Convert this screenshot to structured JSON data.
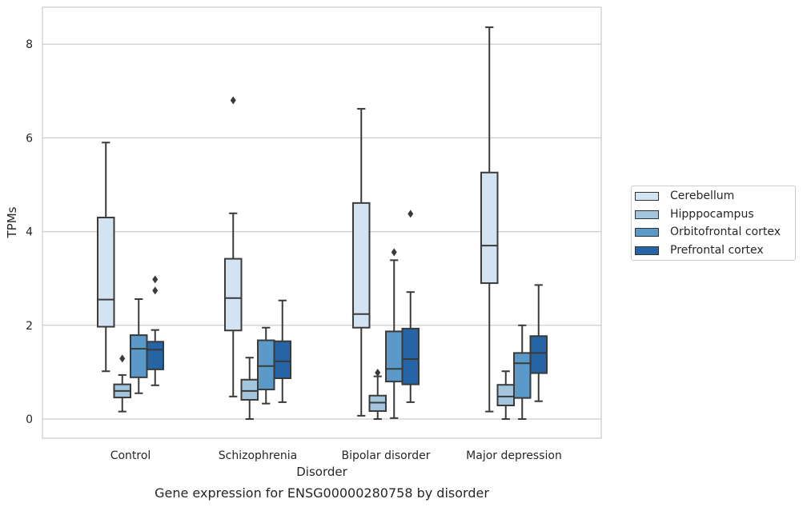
{
  "chart_data": {
    "type": "box",
    "title": "Gene expression for ENSG00000280758 by disorder",
    "xlabel": "Disorder",
    "ylabel": "TPMs",
    "ylim": [
      -0.4,
      8.8
    ],
    "yticks": [
      0,
      2,
      4,
      6,
      8
    ],
    "grid": "horizontal",
    "legend_position": "right",
    "categories": [
      "Control",
      "Schizophrenia",
      "Bipolar disorder",
      "Major depression"
    ],
    "series": [
      {
        "name": "Cerebellum",
        "color": "#d3e3f2",
        "boxes": [
          {
            "whisker_low": 1.02,
            "q1": 1.97,
            "median": 2.55,
            "q3": 4.3,
            "whisker_high": 5.9,
            "outliers": []
          },
          {
            "whisker_low": 0.48,
            "q1": 1.89,
            "median": 2.58,
            "q3": 3.42,
            "whisker_high": 4.39,
            "outliers": [
              6.8
            ]
          },
          {
            "whisker_low": 0.07,
            "q1": 1.95,
            "median": 2.24,
            "q3": 4.61,
            "whisker_high": 6.62,
            "outliers": []
          },
          {
            "whisker_low": 0.16,
            "q1": 2.9,
            "median": 3.7,
            "q3": 5.26,
            "whisker_high": 8.36,
            "outliers": []
          }
        ]
      },
      {
        "name": "Hipppocampus",
        "color": "#a3c6de",
        "boxes": [
          {
            "whisker_low": 0.16,
            "q1": 0.46,
            "median": 0.6,
            "q3": 0.74,
            "whisker_high": 0.94,
            "outliers": [
              1.29
            ]
          },
          {
            "whisker_low": 0.0,
            "q1": 0.41,
            "median": 0.6,
            "q3": 0.84,
            "whisker_high": 1.31,
            "outliers": []
          },
          {
            "whisker_low": 0.0,
            "q1": 0.17,
            "median": 0.35,
            "q3": 0.5,
            "whisker_high": 0.91,
            "outliers": [
              0.99
            ]
          },
          {
            "whisker_low": 0.0,
            "q1": 0.29,
            "median": 0.48,
            "q3": 0.73,
            "whisker_high": 1.02,
            "outliers": []
          }
        ]
      },
      {
        "name": "Orbitofrontal cortex",
        "color": "#5a9ac8",
        "boxes": [
          {
            "whisker_low": 0.55,
            "q1": 0.89,
            "median": 1.5,
            "q3": 1.79,
            "whisker_high": 2.56,
            "outliers": []
          },
          {
            "whisker_low": 0.33,
            "q1": 0.63,
            "median": 1.13,
            "q3": 1.68,
            "whisker_high": 1.95,
            "outliers": []
          },
          {
            "whisker_low": 0.02,
            "q1": 0.8,
            "median": 1.07,
            "q3": 1.87,
            "whisker_high": 3.39,
            "outliers": [
              3.56
            ]
          },
          {
            "whisker_low": 0.0,
            "q1": 0.45,
            "median": 1.19,
            "q3": 1.41,
            "whisker_high": 2.0,
            "outliers": []
          }
        ]
      },
      {
        "name": "Prefrontal cortex",
        "color": "#2564a5",
        "boxes": [
          {
            "whisker_low": 0.72,
            "q1": 1.06,
            "median": 1.48,
            "q3": 1.65,
            "whisker_high": 1.9,
            "outliers": [
              2.74,
              2.98
            ]
          },
          {
            "whisker_low": 0.36,
            "q1": 0.87,
            "median": 1.23,
            "q3": 1.66,
            "whisker_high": 2.53,
            "outliers": []
          },
          {
            "whisker_low": 0.36,
            "q1": 0.74,
            "median": 1.28,
            "q3": 1.93,
            "whisker_high": 2.71,
            "outliers": [
              4.38
            ]
          },
          {
            "whisker_low": 0.38,
            "q1": 0.98,
            "median": 1.41,
            "q3": 1.77,
            "whisker_high": 2.86,
            "outliers": []
          }
        ]
      }
    ]
  }
}
